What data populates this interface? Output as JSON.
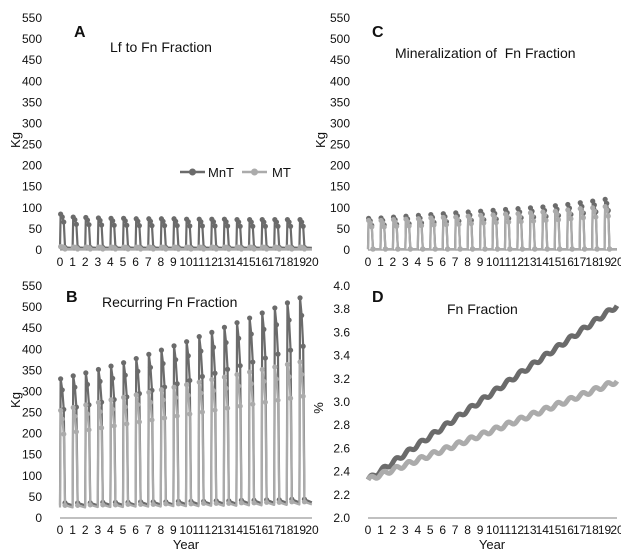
{
  "colors": {
    "MnT": "#6b6b6b",
    "MT": "#ababab",
    "axis": "#808080"
  },
  "chart_data": [
    {
      "panel": "A",
      "title": "Lf to Fn Fraction",
      "type": "line",
      "ylabel": "Kg",
      "xlabel": "",
      "ylim": [
        0,
        550
      ],
      "yticks": [
        "0",
        "50",
        "100",
        "150",
        "200",
        "250",
        "300",
        "350",
        "400",
        "450",
        "500",
        "550"
      ],
      "xtick_labels": [
        "0",
        "1",
        "2",
        "3",
        "4",
        "5",
        "6",
        "7",
        "8",
        "9",
        "10",
        "11",
        "12",
        "13",
        "14",
        "15",
        "16",
        "17",
        "18",
        "19",
        "20"
      ],
      "legend": {
        "position": "center-right",
        "entries": [
          "MnT",
          "MT"
        ]
      },
      "series": [
        {
          "name": "MnT",
          "peaks": [
            85,
            78,
            77,
            76,
            75,
            75,
            74,
            74,
            74,
            74,
            73,
            73,
            73,
            73,
            72,
            72,
            72,
            72,
            72,
            72
          ],
          "lows": [
            5,
            5,
            5,
            5,
            5,
            5,
            5,
            5,
            5,
            5,
            5,
            5,
            5,
            5,
            5,
            5,
            5,
            5,
            5,
            5
          ]
        },
        {
          "name": "MT",
          "peaks": [
            8,
            7,
            7,
            7,
            7,
            7,
            7,
            7,
            7,
            7,
            7,
            7,
            7,
            7,
            7,
            7,
            7,
            7,
            7,
            7
          ],
          "lows": [
            2,
            2,
            2,
            2,
            2,
            2,
            2,
            2,
            2,
            2,
            2,
            2,
            2,
            2,
            2,
            2,
            2,
            2,
            2,
            2
          ]
        }
      ]
    },
    {
      "panel": "C",
      "title": "Mineralization of  Fn Fraction",
      "type": "line",
      "ylabel": "Kg",
      "xlabel": "",
      "ylim": [
        0,
        550
      ],
      "yticks": [
        "0",
        "50",
        "100",
        "150",
        "200",
        "250",
        "300",
        "350",
        "400",
        "450",
        "500",
        "550"
      ],
      "xtick_labels": [
        "0",
        "1",
        "2",
        "3",
        "4",
        "5",
        "6",
        "7",
        "8",
        "9",
        "10",
        "11",
        "12",
        "13",
        "14",
        "15",
        "16",
        "17",
        "18",
        "19",
        "20"
      ],
      "series": [
        {
          "name": "MnT",
          "peaks": [
            75,
            76,
            78,
            80,
            82,
            84,
            86,
            88,
            90,
            92,
            94,
            96,
            98,
            100,
            102,
            105,
            108,
            112,
            116,
            120
          ],
          "lows": [
            2,
            2,
            2,
            2,
            2,
            2,
            2,
            2,
            2,
            2,
            2,
            2,
            2,
            2,
            2,
            2,
            2,
            2,
            2,
            2
          ]
        },
        {
          "name": "MT",
          "peaks": [
            70,
            70,
            72,
            73,
            74,
            76,
            77,
            78,
            80,
            82,
            83,
            85,
            86,
            88,
            90,
            92,
            95,
            98,
            100,
            103
          ],
          "lows": [
            2,
            2,
            2,
            2,
            2,
            2,
            2,
            2,
            2,
            2,
            2,
            2,
            2,
            2,
            2,
            2,
            2,
            2,
            2,
            2
          ]
        }
      ]
    },
    {
      "panel": "B",
      "title": "Recurring Fn Fraction",
      "type": "line",
      "ylabel": "Kg",
      "xlabel": "Year",
      "ylim": [
        0,
        550
      ],
      "yticks": [
        "0",
        "50",
        "100",
        "150",
        "200",
        "250",
        "300",
        "350",
        "400",
        "450",
        "500",
        "550"
      ],
      "xtick_labels": [
        "0",
        "1",
        "2",
        "3",
        "4",
        "5",
        "6",
        "7",
        "8",
        "9",
        "10",
        "11",
        "12",
        "13",
        "14",
        "15",
        "16",
        "17",
        "18",
        "19",
        "20"
      ],
      "series": [
        {
          "name": "MnT",
          "peaks": [
            330,
            337,
            344,
            352,
            360,
            368,
            378,
            388,
            398,
            408,
            418,
            430,
            440,
            452,
            463,
            474,
            486,
            498,
            510,
            522
          ],
          "lows": [
            30,
            30,
            30,
            31,
            31,
            31,
            32,
            32,
            32,
            33,
            33,
            33,
            34,
            34,
            35,
            35,
            36,
            36,
            37,
            37
          ]
        },
        {
          "name": "MT",
          "peaks": [
            255,
            262,
            268,
            274,
            280,
            286,
            292,
            298,
            304,
            310,
            316,
            322,
            328,
            334,
            340,
            346,
            352,
            358,
            364,
            370
          ],
          "lows": [
            25,
            25,
            26,
            26,
            26,
            27,
            27,
            27,
            28,
            28,
            28,
            29,
            29,
            29,
            30,
            30,
            31,
            31,
            32,
            32
          ]
        }
      ]
    },
    {
      "panel": "D",
      "title": "Fn Fraction",
      "type": "line",
      "ylabel": "%",
      "xlabel": "Year",
      "ylim": [
        2.0,
        4.0
      ],
      "yticks": [
        "2.0",
        "2.2",
        "2.4",
        "2.6",
        "2.8",
        "3.0",
        "3.2",
        "3.4",
        "3.6",
        "3.8",
        "4.0"
      ],
      "xtick_labels": [
        "0",
        "1",
        "2",
        "3",
        "4",
        "5",
        "6",
        "7",
        "8",
        "9",
        "10",
        "11",
        "12",
        "13",
        "14",
        "15",
        "16",
        "17",
        "18",
        "19",
        "20"
      ],
      "series": [
        {
          "name": "MnT",
          "start": 2.33,
          "end": 3.83
        },
        {
          "name": "MT",
          "start": 2.33,
          "end": 3.18
        }
      ]
    }
  ]
}
